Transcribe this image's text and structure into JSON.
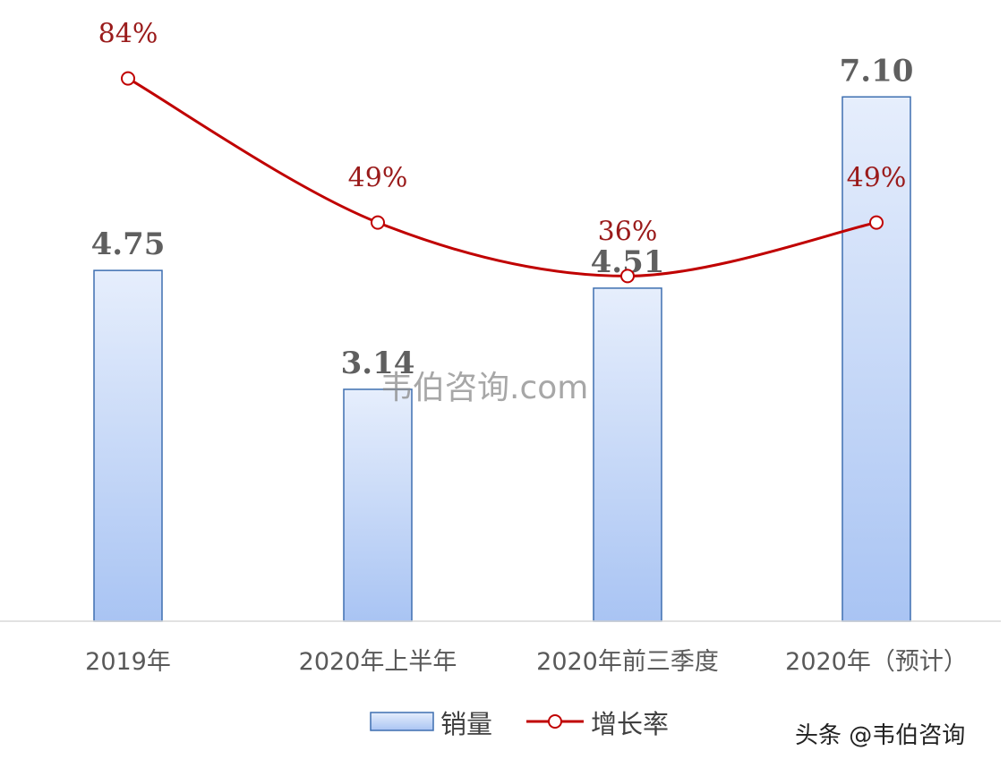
{
  "chart_data": {
    "type": "bar",
    "categories": [
      "2019年",
      "2020年上半年",
      "2020年前三季度",
      "2020年（预计）"
    ],
    "series": [
      {
        "name": "销量",
        "type": "bar",
        "values": [
          4.75,
          3.14,
          4.51,
          7.1
        ],
        "labels": [
          "4.75",
          "3.14",
          "4.51",
          "7.10"
        ]
      },
      {
        "name": "增长率",
        "type": "line",
        "values": [
          84,
          49,
          36,
          49
        ],
        "unit": "%",
        "labels": [
          "84%",
          "49%",
          "36%",
          "49%"
        ]
      }
    ],
    "colors": {
      "bar_fill_top": "#e6eefc",
      "bar_fill_bottom": "#a9c4f3",
      "bar_stroke": "#3e6fb0",
      "line": "#c00000",
      "rate_label": "#9a1b1b",
      "value_label": "#5f5f5f"
    },
    "legend_position": "bottom",
    "grid": false
  },
  "watermark": "韦伯咨询.com",
  "corner_mark": "头条 @韦伯咨询"
}
